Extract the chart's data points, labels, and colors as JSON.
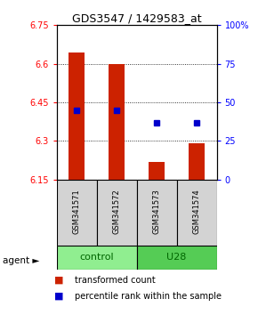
{
  "title": "GDS3547 / 1429583_at",
  "samples": [
    "GSM341571",
    "GSM341572",
    "GSM341573",
    "GSM341574"
  ],
  "red_values": [
    6.645,
    6.6,
    6.22,
    6.29
  ],
  "blue_values": [
    6.42,
    6.42,
    6.37,
    6.37
  ],
  "ymin": 6.15,
  "ymax": 6.75,
  "yticks": [
    6.15,
    6.3,
    6.45,
    6.6,
    6.75
  ],
  "ytick_labels": [
    "6.15",
    "6.3",
    "6.45",
    "6.6",
    "6.75"
  ],
  "grid_lines": [
    6.3,
    6.45,
    6.6
  ],
  "right_yticks": [
    0,
    25,
    50,
    75,
    100
  ],
  "right_ytick_labels": [
    "0",
    "25",
    "50",
    "75",
    "100%"
  ],
  "bar_color": "#CC2200",
  "dot_color": "#0000CC",
  "group_control_color": "#90EE90",
  "group_u28_color": "#55CC55",
  "title_fontsize": 9,
  "tick_fontsize": 7,
  "sample_fontsize": 6,
  "group_fontsize": 8,
  "legend_fontsize": 7
}
